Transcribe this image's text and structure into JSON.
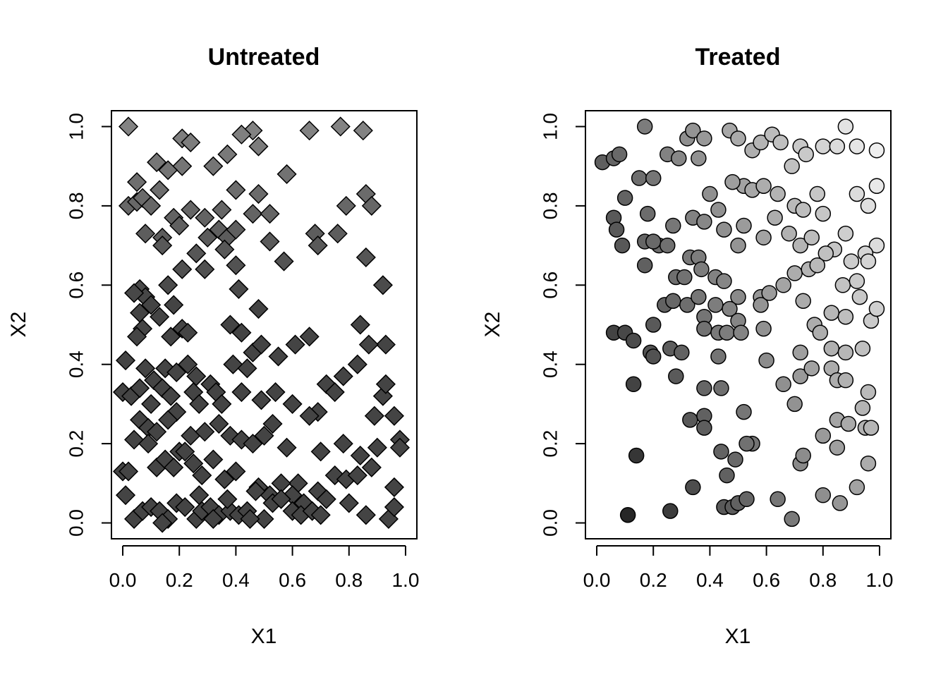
{
  "chart_data": [
    {
      "type": "scatter",
      "title": "Untreated",
      "xlabel": "X1",
      "ylabel": "X2",
      "xlim": [
        0.0,
        1.0
      ],
      "ylim": [
        0.0,
        1.0
      ],
      "xticks": [
        "0.0",
        "0.2",
        "0.4",
        "0.6",
        "0.8",
        "1.0"
      ],
      "yticks": [
        "0.0",
        "0.2",
        "0.4",
        "0.6",
        "0.8",
        "1.0"
      ],
      "marker": "diamond",
      "grid": false,
      "points": [
        [
          0.02,
          1.0
        ],
        [
          0.21,
          0.97
        ],
        [
          0.24,
          0.96
        ],
        [
          0.46,
          0.99
        ],
        [
          0.42,
          0.98
        ],
        [
          0.66,
          0.99
        ],
        [
          0.77,
          1.0
        ],
        [
          0.85,
          0.99
        ],
        [
          0.21,
          0.9
        ],
        [
          0.32,
          0.9
        ],
        [
          0.37,
          0.93
        ],
        [
          0.48,
          0.95
        ],
        [
          0.12,
          0.91
        ],
        [
          0.16,
          0.89
        ],
        [
          0.58,
          0.88
        ],
        [
          0.05,
          0.86
        ],
        [
          0.02,
          0.8
        ],
        [
          0.05,
          0.81
        ],
        [
          0.07,
          0.82
        ],
        [
          0.1,
          0.8
        ],
        [
          0.13,
          0.84
        ],
        [
          0.18,
          0.77
        ],
        [
          0.24,
          0.79
        ],
        [
          0.29,
          0.77
        ],
        [
          0.35,
          0.79
        ],
        [
          0.4,
          0.84
        ],
        [
          0.46,
          0.78
        ],
        [
          0.48,
          0.83
        ],
        [
          0.52,
          0.78
        ],
        [
          0.08,
          0.73
        ],
        [
          0.14,
          0.72
        ],
        [
          0.2,
          0.75
        ],
        [
          0.3,
          0.72
        ],
        [
          0.34,
          0.74
        ],
        [
          0.37,
          0.72
        ],
        [
          0.4,
          0.74
        ],
        [
          0.52,
          0.71
        ],
        [
          0.68,
          0.73
        ],
        [
          0.69,
          0.7
        ],
        [
          0.76,
          0.73
        ],
        [
          0.79,
          0.8
        ],
        [
          0.86,
          0.83
        ],
        [
          0.88,
          0.8
        ],
        [
          0.14,
          0.7
        ],
        [
          0.26,
          0.68
        ],
        [
          0.36,
          0.69
        ],
        [
          0.57,
          0.66
        ],
        [
          0.86,
          0.67
        ],
        [
          0.21,
          0.64
        ],
        [
          0.29,
          0.64
        ],
        [
          0.4,
          0.65
        ],
        [
          0.06,
          0.59
        ],
        [
          0.08,
          0.57
        ],
        [
          0.04,
          0.58
        ],
        [
          0.16,
          0.6
        ],
        [
          0.41,
          0.59
        ],
        [
          0.92,
          0.6
        ],
        [
          0.06,
          0.53
        ],
        [
          0.1,
          0.55
        ],
        [
          0.13,
          0.52
        ],
        [
          0.18,
          0.55
        ],
        [
          0.48,
          0.54
        ],
        [
          0.07,
          0.49
        ],
        [
          0.05,
          0.47
        ],
        [
          0.17,
          0.47
        ],
        [
          0.21,
          0.49
        ],
        [
          0.23,
          0.48
        ],
        [
          0.38,
          0.5
        ],
        [
          0.42,
          0.48
        ],
        [
          0.61,
          0.45
        ],
        [
          0.66,
          0.47
        ],
        [
          0.84,
          0.5
        ],
        [
          0.93,
          0.45
        ],
        [
          0.01,
          0.41
        ],
        [
          0.08,
          0.39
        ],
        [
          0.11,
          0.36
        ],
        [
          0.15,
          0.39
        ],
        [
          0.19,
          0.38
        ],
        [
          0.23,
          0.4
        ],
        [
          0.26,
          0.37
        ],
        [
          0.31,
          0.35
        ],
        [
          0.39,
          0.4
        ],
        [
          0.44,
          0.39
        ],
        [
          0.46,
          0.43
        ],
        [
          0.49,
          0.45
        ],
        [
          0.55,
          0.42
        ],
        [
          0.72,
          0.35
        ],
        [
          0.78,
          0.37
        ],
        [
          0.83,
          0.4
        ],
        [
          0.87,
          0.45
        ],
        [
          0.0,
          0.33
        ],
        [
          0.03,
          0.32
        ],
        [
          0.06,
          0.34
        ],
        [
          0.1,
          0.3
        ],
        [
          0.14,
          0.34
        ],
        [
          0.17,
          0.32
        ],
        [
          0.19,
          0.28
        ],
        [
          0.25,
          0.33
        ],
        [
          0.27,
          0.3
        ],
        [
          0.33,
          0.33
        ],
        [
          0.35,
          0.3
        ],
        [
          0.42,
          0.33
        ],
        [
          0.49,
          0.31
        ],
        [
          0.54,
          0.33
        ],
        [
          0.6,
          0.3
        ],
        [
          0.69,
          0.28
        ],
        [
          0.75,
          0.33
        ],
        [
          0.89,
          0.27
        ],
        [
          0.92,
          0.32
        ],
        [
          0.93,
          0.35
        ],
        [
          0.96,
          0.27
        ],
        [
          0.04,
          0.21
        ],
        [
          0.06,
          0.26
        ],
        [
          0.09,
          0.24
        ],
        [
          0.12,
          0.23
        ],
        [
          0.16,
          0.26
        ],
        [
          0.2,
          0.18
        ],
        [
          0.24,
          0.22
        ],
        [
          0.29,
          0.23
        ],
        [
          0.34,
          0.25
        ],
        [
          0.38,
          0.22
        ],
        [
          0.42,
          0.21
        ],
        [
          0.46,
          0.2
        ],
        [
          0.5,
          0.22
        ],
        [
          0.53,
          0.25
        ],
        [
          0.58,
          0.19
        ],
        [
          0.62,
          0.1
        ],
        [
          0.66,
          0.27
        ],
        [
          0.7,
          0.18
        ],
        [
          0.78,
          0.2
        ],
        [
          0.84,
          0.17
        ],
        [
          0.9,
          0.19
        ],
        [
          0.98,
          0.21
        ],
        [
          0.0,
          0.13
        ],
        [
          0.02,
          0.13
        ],
        [
          0.09,
          0.2
        ],
        [
          0.12,
          0.14
        ],
        [
          0.15,
          0.16
        ],
        [
          0.18,
          0.14
        ],
        [
          0.22,
          0.18
        ],
        [
          0.25,
          0.15
        ],
        [
          0.28,
          0.12
        ],
        [
          0.32,
          0.16
        ],
        [
          0.36,
          0.11
        ],
        [
          0.4,
          0.13
        ],
        [
          0.48,
          0.09
        ],
        [
          0.52,
          0.07
        ],
        [
          0.56,
          0.1
        ],
        [
          0.6,
          0.07
        ],
        [
          0.64,
          0.05
        ],
        [
          0.69,
          0.08
        ],
        [
          0.75,
          0.12
        ],
        [
          0.79,
          0.11
        ],
        [
          0.83,
          0.12
        ],
        [
          0.88,
          0.14
        ],
        [
          0.96,
          0.09
        ],
        [
          0.98,
          0.19
        ],
        [
          0.01,
          0.07
        ],
        [
          0.04,
          0.01
        ],
        [
          0.07,
          0.03
        ],
        [
          0.1,
          0.04
        ],
        [
          0.13,
          0.03
        ],
        [
          0.16,
          0.01
        ],
        [
          0.19,
          0.05
        ],
        [
          0.22,
          0.04
        ],
        [
          0.26,
          0.01
        ],
        [
          0.28,
          0.03
        ],
        [
          0.31,
          0.04
        ],
        [
          0.34,
          0.02
        ],
        [
          0.38,
          0.03
        ],
        [
          0.41,
          0.02
        ],
        [
          0.44,
          0.03
        ],
        [
          0.47,
          0.08
        ],
        [
          0.5,
          0.01
        ],
        [
          0.53,
          0.05
        ],
        [
          0.56,
          0.06
        ],
        [
          0.6,
          0.03
        ],
        [
          0.63,
          0.02
        ],
        [
          0.67,
          0.03
        ],
        [
          0.7,
          0.02
        ],
        [
          0.72,
          0.06
        ],
        [
          0.8,
          0.05
        ],
        [
          0.86,
          0.02
        ],
        [
          0.94,
          0.01
        ],
        [
          0.96,
          0.04
        ],
        [
          0.14,
          0.0
        ],
        [
          0.45,
          0.01
        ],
        [
          0.37,
          0.06
        ],
        [
          0.27,
          0.07
        ],
        [
          0.32,
          0.01
        ]
      ]
    },
    {
      "type": "scatter",
      "title": "Treated",
      "xlabel": "X1",
      "ylabel": "X2",
      "xlim": [
        0.0,
        1.0
      ],
      "ylim": [
        0.0,
        1.0
      ],
      "xticks": [
        "0.0",
        "0.2",
        "0.4",
        "0.6",
        "0.8",
        "1.0"
      ],
      "yticks": [
        "0.0",
        "0.2",
        "0.4",
        "0.6",
        "0.8",
        "1.0"
      ],
      "marker": "circle",
      "grid": false,
      "points": [
        [
          0.02,
          0.91
        ],
        [
          0.06,
          0.92
        ],
        [
          0.08,
          0.93
        ],
        [
          0.17,
          1.0
        ],
        [
          0.15,
          0.87
        ],
        [
          0.2,
          0.87
        ],
        [
          0.25,
          0.93
        ],
        [
          0.29,
          0.92
        ],
        [
          0.32,
          0.97
        ],
        [
          0.34,
          0.99
        ],
        [
          0.36,
          0.92
        ],
        [
          0.38,
          0.97
        ],
        [
          0.4,
          0.83
        ],
        [
          0.47,
          0.99
        ],
        [
          0.5,
          0.97
        ],
        [
          0.52,
          0.85
        ],
        [
          0.55,
          0.94
        ],
        [
          0.58,
          0.96
        ],
        [
          0.62,
          0.98
        ],
        [
          0.65,
          0.96
        ],
        [
          0.69,
          0.9
        ],
        [
          0.72,
          0.95
        ],
        [
          0.74,
          0.93
        ],
        [
          0.8,
          0.95
        ],
        [
          0.85,
          0.95
        ],
        [
          0.88,
          1.0
        ],
        [
          0.92,
          0.95
        ],
        [
          0.99,
          0.94
        ],
        [
          0.99,
          0.85
        ],
        [
          0.06,
          0.77
        ],
        [
          0.1,
          0.82
        ],
        [
          0.07,
          0.74
        ],
        [
          0.09,
          0.7
        ],
        [
          0.18,
          0.78
        ],
        [
          0.22,
          0.7
        ],
        [
          0.27,
          0.75
        ],
        [
          0.34,
          0.77
        ],
        [
          0.38,
          0.76
        ],
        [
          0.43,
          0.79
        ],
        [
          0.48,
          0.86
        ],
        [
          0.55,
          0.84
        ],
        [
          0.59,
          0.85
        ],
        [
          0.64,
          0.83
        ],
        [
          0.7,
          0.8
        ],
        [
          0.73,
          0.79
        ],
        [
          0.78,
          0.83
        ],
        [
          0.8,
          0.78
        ],
        [
          0.84,
          0.69
        ],
        [
          0.88,
          0.73
        ],
        [
          0.92,
          0.83
        ],
        [
          0.96,
          0.8
        ],
        [
          0.99,
          0.7
        ],
        [
          0.17,
          0.71
        ],
        [
          0.2,
          0.71
        ],
        [
          0.25,
          0.7
        ],
        [
          0.33,
          0.67
        ],
        [
          0.36,
          0.67
        ],
        [
          0.45,
          0.74
        ],
        [
          0.5,
          0.7
        ],
        [
          0.52,
          0.75
        ],
        [
          0.59,
          0.72
        ],
        [
          0.63,
          0.77
        ],
        [
          0.68,
          0.73
        ],
        [
          0.72,
          0.7
        ],
        [
          0.76,
          0.72
        ],
        [
          0.81,
          0.68
        ],
        [
          0.9,
          0.66
        ],
        [
          0.95,
          0.68
        ],
        [
          0.17,
          0.65
        ],
        [
          0.28,
          0.62
        ],
        [
          0.31,
          0.62
        ],
        [
          0.37,
          0.64
        ],
        [
          0.42,
          0.62
        ],
        [
          0.45,
          0.61
        ],
        [
          0.5,
          0.57
        ],
        [
          0.58,
          0.57
        ],
        [
          0.66,
          0.6
        ],
        [
          0.7,
          0.63
        ],
        [
          0.75,
          0.64
        ],
        [
          0.78,
          0.65
        ],
        [
          0.87,
          0.6
        ],
        [
          0.92,
          0.61
        ],
        [
          0.96,
          0.66
        ],
        [
          0.2,
          0.5
        ],
        [
          0.24,
          0.55
        ],
        [
          0.27,
          0.56
        ],
        [
          0.32,
          0.55
        ],
        [
          0.36,
          0.57
        ],
        [
          0.38,
          0.52
        ],
        [
          0.42,
          0.55
        ],
        [
          0.47,
          0.54
        ],
        [
          0.5,
          0.51
        ],
        [
          0.58,
          0.55
        ],
        [
          0.61,
          0.58
        ],
        [
          0.73,
          0.56
        ],
        [
          0.77,
          0.5
        ],
        [
          0.83,
          0.53
        ],
        [
          0.88,
          0.52
        ],
        [
          0.93,
          0.57
        ],
        [
          0.97,
          0.51
        ],
        [
          0.99,
          0.54
        ],
        [
          0.06,
          0.48
        ],
        [
          0.1,
          0.48
        ],
        [
          0.13,
          0.46
        ],
        [
          0.19,
          0.43
        ],
        [
          0.2,
          0.42
        ],
        [
          0.26,
          0.44
        ],
        [
          0.3,
          0.43
        ],
        [
          0.38,
          0.49
        ],
        [
          0.43,
          0.48
        ],
        [
          0.46,
          0.48
        ],
        [
          0.51,
          0.48
        ],
        [
          0.59,
          0.49
        ],
        [
          0.72,
          0.43
        ],
        [
          0.79,
          0.48
        ],
        [
          0.83,
          0.44
        ],
        [
          0.88,
          0.43
        ],
        [
          0.94,
          0.44
        ],
        [
          0.13,
          0.35
        ],
        [
          0.28,
          0.37
        ],
        [
          0.38,
          0.34
        ],
        [
          0.43,
          0.42
        ],
        [
          0.6,
          0.41
        ],
        [
          0.66,
          0.35
        ],
        [
          0.7,
          0.3
        ],
        [
          0.72,
          0.37
        ],
        [
          0.76,
          0.39
        ],
        [
          0.83,
          0.39
        ],
        [
          0.85,
          0.36
        ],
        [
          0.88,
          0.36
        ],
        [
          0.96,
          0.33
        ],
        [
          0.33,
          0.26
        ],
        [
          0.38,
          0.27
        ],
        [
          0.38,
          0.24
        ],
        [
          0.44,
          0.34
        ],
        [
          0.52,
          0.28
        ],
        [
          0.55,
          0.2
        ],
        [
          0.8,
          0.22
        ],
        [
          0.85,
          0.26
        ],
        [
          0.89,
          0.25
        ],
        [
          0.94,
          0.29
        ],
        [
          0.95,
          0.24
        ],
        [
          0.97,
          0.24
        ],
        [
          0.14,
          0.17
        ],
        [
          0.44,
          0.18
        ],
        [
          0.49,
          0.16
        ],
        [
          0.53,
          0.2
        ],
        [
          0.72,
          0.15
        ],
        [
          0.73,
          0.17
        ],
        [
          0.85,
          0.19
        ],
        [
          0.96,
          0.15
        ],
        [
          0.11,
          0.02
        ],
        [
          0.26,
          0.03
        ],
        [
          0.34,
          0.09
        ],
        [
          0.46,
          0.12
        ],
        [
          0.45,
          0.04
        ],
        [
          0.48,
          0.04
        ],
        [
          0.5,
          0.05
        ],
        [
          0.53,
          0.06
        ],
        [
          0.64,
          0.06
        ],
        [
          0.69,
          0.01
        ],
        [
          0.8,
          0.07
        ],
        [
          0.86,
          0.05
        ],
        [
          0.92,
          0.09
        ]
      ]
    }
  ]
}
